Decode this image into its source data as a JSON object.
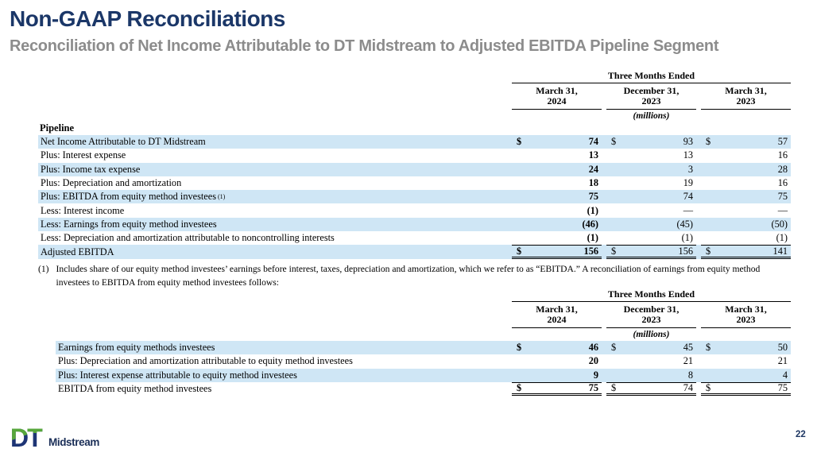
{
  "slide": {
    "title": "Non-GAAP Reconciliations",
    "subtitle": "Reconciliation of Net Income Attributable to DT Midstream to Adjusted EBITDA Pipeline Segment",
    "page_number": "22"
  },
  "logo": {
    "letters": "DT",
    "wordmark": "Midstream"
  },
  "colors": {
    "title_navy": "#1b3768",
    "subtitle_gray": "#8c8c8c",
    "row_shade_blue": "#cfe6f5",
    "logo_green": "#57a73b",
    "logo_navy": "#1e3575",
    "rule_black": "#000000"
  },
  "footnote": {
    "marker": "(1)",
    "text": "Includes share of our equity method investees’ earnings before interest, taxes, depreciation and amortization, which we refer to as “EBITDA.” A reconciliation of earnings from equity method investees to EBITDA from equity method investees follows:"
  },
  "tables": [
    {
      "span_header": "Three Months Ended",
      "columns": [
        {
          "line1": "March 31,",
          "line2": "2024"
        },
        {
          "line1": "December 31,",
          "line2": "2023"
        },
        {
          "line1": "March 31,",
          "line2": "2023"
        }
      ],
      "units_label": "(millions)",
      "section_label": "Pipeline",
      "rows": [
        {
          "label": "Net Income Attributable to DT Midstream",
          "shaded": true,
          "dollar": true,
          "total": false,
          "values": [
            "74",
            "93",
            "57"
          ]
        },
        {
          "label": "Plus: Interest expense",
          "shaded": false,
          "dollar": false,
          "total": false,
          "values": [
            "13",
            "13",
            "16"
          ]
        },
        {
          "label": "Plus: Income tax expense",
          "shaded": true,
          "dollar": false,
          "total": false,
          "values": [
            "24",
            "3",
            "28"
          ]
        },
        {
          "label": "Plus: Depreciation and amortization",
          "shaded": false,
          "dollar": false,
          "total": false,
          "values": [
            "18",
            "19",
            "16"
          ]
        },
        {
          "label": "Plus: EBITDA from equity method investees",
          "superscript": "(1)",
          "shaded": true,
          "dollar": false,
          "total": false,
          "values": [
            "75",
            "74",
            "75"
          ]
        },
        {
          "label": "Less: Interest income",
          "shaded": false,
          "dollar": false,
          "total": false,
          "values": [
            "(1)",
            "—",
            "—"
          ]
        },
        {
          "label": "Less: Earnings from equity method investees",
          "shaded": true,
          "dollar": false,
          "total": false,
          "values": [
            "(46)",
            "(45)",
            "(50)"
          ]
        },
        {
          "label": "Less: Depreciation and amortization attributable to noncontrolling interests",
          "shaded": false,
          "dollar": false,
          "total": false,
          "values": [
            "(1)",
            "(1)",
            "(1)"
          ]
        },
        {
          "label": "Adjusted EBITDA",
          "shaded": true,
          "dollar": true,
          "total": true,
          "values": [
            "156",
            "156",
            "141"
          ]
        }
      ]
    },
    {
      "span_header": "Three Months Ended",
      "columns": [
        {
          "line1": "March 31,",
          "line2": "2024"
        },
        {
          "line1": "December 31,",
          "line2": "2023"
        },
        {
          "line1": "March 31,",
          "line2": "2023"
        }
      ],
      "units_label": "(millions)",
      "section_label": null,
      "rows": [
        {
          "label": "Earnings from equity methods investees",
          "shaded": true,
          "dollar": true,
          "total": false,
          "values": [
            "46",
            "45",
            "50"
          ]
        },
        {
          "label": "Plus: Depreciation and amortization attributable to equity method investees",
          "shaded": false,
          "dollar": false,
          "total": false,
          "values": [
            "20",
            "21",
            "21"
          ]
        },
        {
          "label": "Plus: Interest expense attributable to equity method investees",
          "shaded": true,
          "dollar": false,
          "total": false,
          "values": [
            "9",
            "8",
            "4"
          ]
        },
        {
          "label": "EBITDA from equity method investees",
          "shaded": false,
          "dollar": true,
          "total": true,
          "values": [
            "75",
            "74",
            "75"
          ]
        }
      ]
    }
  ]
}
